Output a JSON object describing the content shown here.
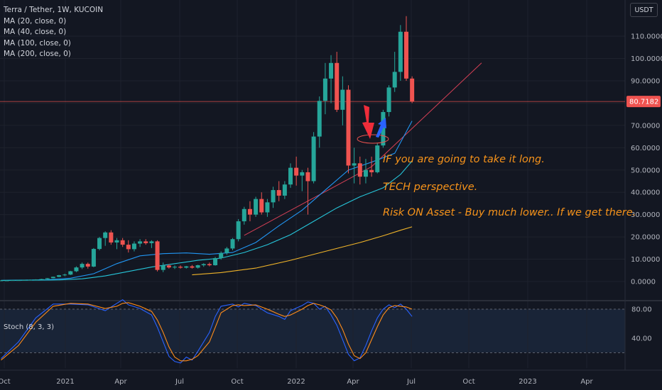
{
  "header": {
    "symbol_line": "Terra / Tether, 1W, KUCOIN",
    "indicators": [
      "MA (20, close, 0)",
      "MA (40, close, 0)",
      "MA (100, close, 0)",
      "MA (200, close, 0)"
    ],
    "currency": "USDT"
  },
  "annotations": [
    "IF you are going to take it long.",
    "TECH perspective.",
    "Risk ON Asset - Buy much lower.. If we get there."
  ],
  "stoch": {
    "label": "Stoch (8, 3, 3)",
    "upper": 80,
    "lower": 20,
    "ticks": [
      "80.00",
      "40.00"
    ]
  },
  "colors": {
    "up": "#26a69a",
    "down": "#ef5350",
    "ma20": "#2196f3",
    "ma40": "#26c6da",
    "ma200": "#f0b429",
    "k": "#2962ff",
    "d": "#ff8c1a",
    "annotation": "#f7931a",
    "trend": "#d43f55"
  },
  "chart_data": {
    "type": "candlestick",
    "title": "Terra / Tether, 1W, KUCOIN",
    "ylim": [
      -2,
      125
    ],
    "y_ticks": [
      "110.0000",
      "100.0000",
      "90.0000",
      "80.0000",
      "70.0000",
      "60.0000",
      "50.0000",
      "40.0000",
      "30.0000",
      "20.0000",
      "10.0000",
      "0.0000"
    ],
    "x_ticks": [
      "Oct",
      "2021",
      "Apr",
      "Jul",
      "Oct",
      "2022",
      "Apr",
      "Jul",
      "Oct",
      "2023",
      "Apr"
    ],
    "last_price": "80.7182",
    "last_price_value": 80.72,
    "candles": [
      [
        0.5,
        0.6,
        0.4,
        0.5
      ],
      [
        0.5,
        0.6,
        0.4,
        0.5
      ],
      [
        0.5,
        0.6,
        0.4,
        0.6
      ],
      [
        0.6,
        0.7,
        0.5,
        0.6
      ],
      [
        0.6,
        0.8,
        0.5,
        0.7
      ],
      [
        0.7,
        0.9,
        0.6,
        0.8
      ],
      [
        0.8,
        1.0,
        0.7,
        0.9
      ],
      [
        0.9,
        1.2,
        0.8,
        1.1
      ],
      [
        1.1,
        1.6,
        1.0,
        1.5
      ],
      [
        1.5,
        2.2,
        1.4,
        2.1
      ],
      [
        2.1,
        3.0,
        1.9,
        2.8
      ],
      [
        2.8,
        3.5,
        2.4,
        3.1
      ],
      [
        3.1,
        4.8,
        2.9,
        4.6
      ],
      [
        4.6,
        6.8,
        4.2,
        6.3
      ],
      [
        6.3,
        8.5,
        5.6,
        7.9
      ],
      [
        7.9,
        8.5,
        5.8,
        6.7
      ],
      [
        6.7,
        15.0,
        6.4,
        14.6
      ],
      [
        14.6,
        20.0,
        14.0,
        19.5
      ],
      [
        19.5,
        22.5,
        16.0,
        22.0
      ],
      [
        22.0,
        23.0,
        16.5,
        17.5
      ],
      [
        17.5,
        19.5,
        14.5,
        18.5
      ],
      [
        18.5,
        19.5,
        15.5,
        16.5
      ],
      [
        16.5,
        18.5,
        13.0,
        14.5
      ],
      [
        14.5,
        18.0,
        13.5,
        17.0
      ],
      [
        17.0,
        19.0,
        15.5,
        18.0
      ],
      [
        18.0,
        19.0,
        16.5,
        17.2
      ],
      [
        17.2,
        18.5,
        15.0,
        18.0
      ],
      [
        18.0,
        18.5,
        4.5,
        5.2
      ],
      [
        5.2,
        8.5,
        4.2,
        7.2
      ],
      [
        7.2,
        7.8,
        5.8,
        6.3
      ],
      [
        6.3,
        7.2,
        5.6,
        6.6
      ],
      [
        6.6,
        7.2,
        5.8,
        6.2
      ],
      [
        6.2,
        7.0,
        5.8,
        6.8
      ],
      [
        6.8,
        7.4,
        5.8,
        6.2
      ],
      [
        6.2,
        7.5,
        5.8,
        7.3
      ],
      [
        7.3,
        8.2,
        6.6,
        7.8
      ],
      [
        7.8,
        8.5,
        6.8,
        7.3
      ],
      [
        7.3,
        11.0,
        7.1,
        10.5
      ],
      [
        10.5,
        13.5,
        9.8,
        12.8
      ],
      [
        12.8,
        15.5,
        12.0,
        14.8
      ],
      [
        14.8,
        19.5,
        14.0,
        19.0
      ],
      [
        19.0,
        28.0,
        18.0,
        27.0
      ],
      [
        27.0,
        33.5,
        25.5,
        32.5
      ],
      [
        32.5,
        36.0,
        27.0,
        30.0
      ],
      [
        30.0,
        38.0,
        29.0,
        37.0
      ],
      [
        37.0,
        40.0,
        30.0,
        31.0
      ],
      [
        31.0,
        37.0,
        29.0,
        35.5
      ],
      [
        35.5,
        42.5,
        33.0,
        41.0
      ],
      [
        41.0,
        45.0,
        36.0,
        38.5
      ],
      [
        38.5,
        45.0,
        37.0,
        43.5
      ],
      [
        43.5,
        53.0,
        42.0,
        51.0
      ],
      [
        51.0,
        56.0,
        43.0,
        47.5
      ],
      [
        47.5,
        50.0,
        40.5,
        49.0
      ],
      [
        49.0,
        51.0,
        30.0,
        45.0
      ],
      [
        45.0,
        67.0,
        44.0,
        65.0
      ],
      [
        65.0,
        83.0,
        60.0,
        81.0
      ],
      [
        81.0,
        98.0,
        75.0,
        91.0
      ],
      [
        91.0,
        101.5,
        80.0,
        98.0
      ],
      [
        98.0,
        103.0,
        76.0,
        77.0
      ],
      [
        77.0,
        92.0,
        70.0,
        86.0
      ],
      [
        86.0,
        88.0,
        48.5,
        52.0
      ],
      [
        52.0,
        60.0,
        44.0,
        53.0
      ],
      [
        53.0,
        56.0,
        43.5,
        47.0
      ],
      [
        47.0,
        55.0,
        44.0,
        50.0
      ],
      [
        50.0,
        56.0,
        47.0,
        49.0
      ],
      [
        49.0,
        62.0,
        48.5,
        61.0
      ],
      [
        61.0,
        77.0,
        60.0,
        76.0
      ],
      [
        76.0,
        88.0,
        74.0,
        87.0
      ],
      [
        87.0,
        103.0,
        85.0,
        94.0
      ],
      [
        94.0,
        115.0,
        90.0,
        112.0
      ],
      [
        112.0,
        119.0,
        90.0,
        91.0
      ],
      [
        91.0,
        92.0,
        80.0,
        80.72
      ]
    ],
    "series": [
      {
        "name": "MA (20, close, 0)",
        "color": "#2196f3",
        "points": [
          [
            0,
            0.5
          ],
          [
            8,
            0.8
          ],
          [
            12,
            1.5
          ],
          [
            16,
            3.5
          ],
          [
            20,
            8.0
          ],
          [
            24,
            11.5
          ],
          [
            28,
            12.5
          ],
          [
            32,
            12.8
          ],
          [
            36,
            12.2
          ],
          [
            40,
            13.0
          ],
          [
            44,
            17.5
          ],
          [
            48,
            25.0
          ],
          [
            52,
            32.0
          ],
          [
            56,
            41.0
          ],
          [
            60,
            50.0
          ],
          [
            64,
            53.5
          ],
          [
            68,
            57.5
          ],
          [
            71,
            72.0
          ]
        ]
      },
      {
        "name": "MA (40, close, 0)",
        "color": "#26c6da",
        "points": [
          [
            0,
            0.5
          ],
          [
            10,
            0.7
          ],
          [
            14,
            1.2
          ],
          [
            18,
            2.5
          ],
          [
            22,
            4.5
          ],
          [
            26,
            6.5
          ],
          [
            30,
            8.0
          ],
          [
            34,
            9.5
          ],
          [
            38,
            10.5
          ],
          [
            42,
            13.0
          ],
          [
            46,
            16.5
          ],
          [
            50,
            21.0
          ],
          [
            54,
            27.0
          ],
          [
            58,
            33.0
          ],
          [
            62,
            38.0
          ],
          [
            66,
            42.0
          ],
          [
            69,
            48.0
          ],
          [
            71,
            54.0
          ]
        ]
      },
      {
        "name": "MA (200, close, 0)",
        "color": "#f0b429",
        "points": [
          [
            33,
            3.0
          ],
          [
            38,
            4.0
          ],
          [
            44,
            6.0
          ],
          [
            50,
            9.5
          ],
          [
            56,
            13.5
          ],
          [
            62,
            17.5
          ],
          [
            66,
            20.5
          ],
          [
            69,
            23.0
          ],
          [
            71,
            24.5
          ]
        ]
      }
    ],
    "trendline": [
      [
        42,
        20.7
      ],
      [
        64,
        51.5
      ],
      [
        83,
        98.0
      ]
    ],
    "stochastic": {
      "k": [
        [
          0,
          12
        ],
        [
          3,
          35
        ],
        [
          6,
          68
        ],
        [
          9,
          87
        ],
        [
          12,
          87
        ],
        [
          15,
          86
        ],
        [
          18,
          78
        ],
        [
          20,
          88
        ],
        [
          21,
          93
        ],
        [
          22,
          86
        ],
        [
          24,
          81
        ],
        [
          26,
          72
        ],
        [
          27,
          55
        ],
        [
          28,
          35
        ],
        [
          29,
          15
        ],
        [
          30,
          8
        ],
        [
          31,
          6
        ],
        [
          32,
          14
        ],
        [
          33,
          10
        ],
        [
          34,
          22
        ],
        [
          36,
          48
        ],
        [
          37,
          70
        ],
        [
          38,
          84
        ],
        [
          40,
          87
        ],
        [
          41,
          83
        ],
        [
          42,
          88
        ],
        [
          44,
          85
        ],
        [
          46,
          75
        ],
        [
          48,
          70
        ],
        [
          49,
          66
        ],
        [
          50,
          78
        ],
        [
          52,
          85
        ],
        [
          53,
          90
        ],
        [
          54,
          88
        ],
        [
          55,
          80
        ],
        [
          56,
          84
        ],
        [
          57,
          72
        ],
        [
          58,
          58
        ],
        [
          59,
          38
        ],
        [
          60,
          18
        ],
        [
          61,
          9
        ],
        [
          62,
          13
        ],
        [
          63,
          30
        ],
        [
          64,
          50
        ],
        [
          65,
          68
        ],
        [
          66,
          80
        ],
        [
          67,
          86
        ],
        [
          68,
          82
        ],
        [
          69,
          87
        ],
        [
          70,
          80
        ],
        [
          71,
          70
        ]
      ],
      "d": [
        [
          0,
          10
        ],
        [
          3,
          30
        ],
        [
          6,
          62
        ],
        [
          9,
          84
        ],
        [
          12,
          88
        ],
        [
          15,
          87
        ],
        [
          18,
          81
        ],
        [
          20,
          84
        ],
        [
          21,
          88
        ],
        [
          22,
          89
        ],
        [
          24,
          84
        ],
        [
          26,
          77
        ],
        [
          27,
          65
        ],
        [
          28,
          48
        ],
        [
          29,
          28
        ],
        [
          30,
          14
        ],
        [
          31,
          9
        ],
        [
          32,
          9
        ],
        [
          33,
          11
        ],
        [
          34,
          16
        ],
        [
          36,
          35
        ],
        [
          37,
          55
        ],
        [
          38,
          75
        ],
        [
          40,
          85
        ],
        [
          41,
          86
        ],
        [
          42,
          85
        ],
        [
          44,
          86
        ],
        [
          46,
          80
        ],
        [
          48,
          73
        ],
        [
          49,
          70
        ],
        [
          50,
          72
        ],
        [
          52,
          80
        ],
        [
          53,
          85
        ],
        [
          54,
          88
        ],
        [
          55,
          86
        ],
        [
          56,
          83
        ],
        [
          57,
          79
        ],
        [
          58,
          68
        ],
        [
          59,
          52
        ],
        [
          60,
          32
        ],
        [
          61,
          16
        ],
        [
          62,
          12
        ],
        [
          63,
          20
        ],
        [
          64,
          38
        ],
        [
          65,
          56
        ],
        [
          66,
          72
        ],
        [
          67,
          82
        ],
        [
          68,
          85
        ],
        [
          69,
          84
        ],
        [
          70,
          83
        ],
        [
          71,
          80
        ]
      ]
    }
  }
}
